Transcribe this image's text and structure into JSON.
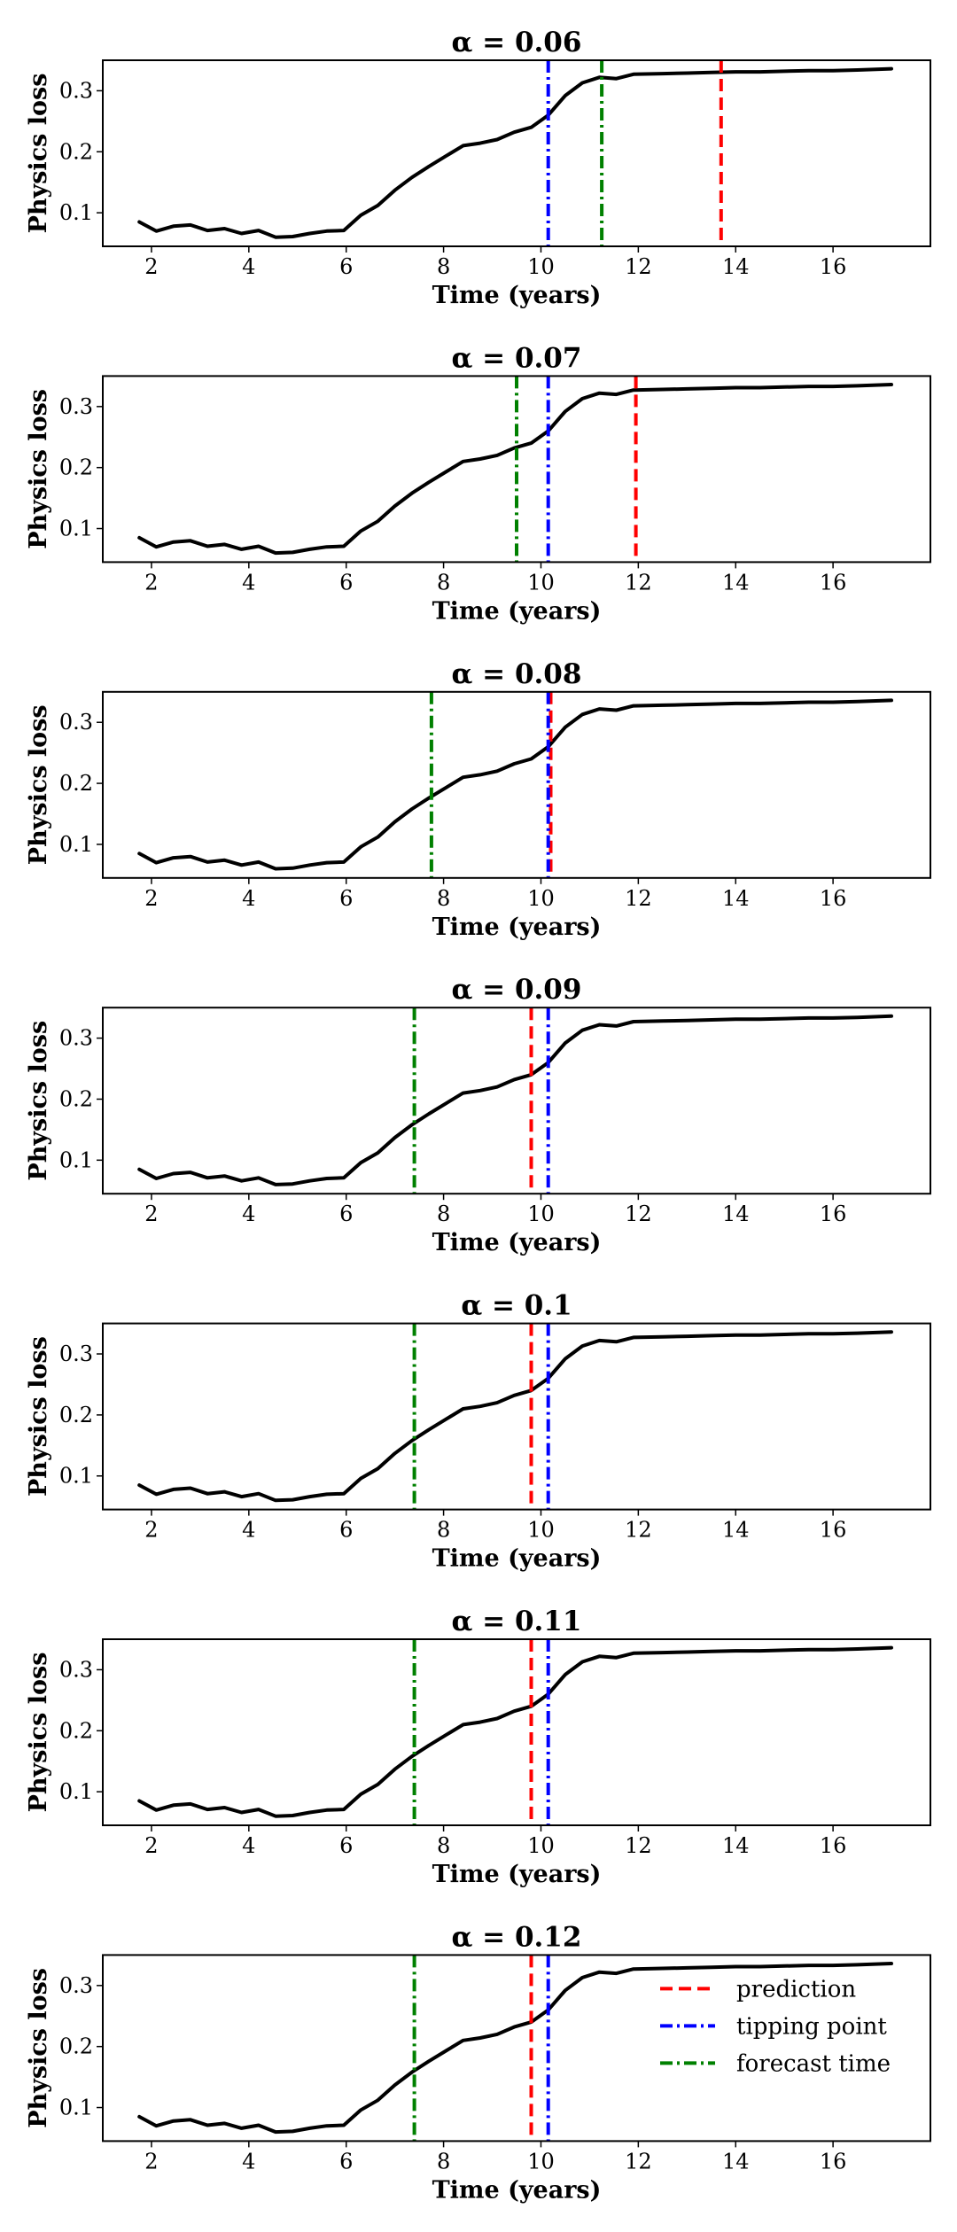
{
  "chart_data": [
    {
      "type": "line",
      "title": "α = 0.06",
      "xlabel": "Time (years)",
      "ylabel": "Physics loss",
      "xlim": [
        1.0,
        18.0
      ],
      "ylim": [
        0.045,
        0.35
      ],
      "xticks": [
        2,
        4,
        6,
        8,
        10,
        12,
        14,
        16
      ],
      "yticks": [
        0.1,
        0.2,
        0.3
      ],
      "grid": false,
      "loss_curve": {
        "x": [
          1.75,
          2.1,
          2.45,
          2.8,
          3.15,
          3.5,
          3.85,
          4.2,
          4.55,
          4.9,
          5.25,
          5.6,
          5.95,
          6.3,
          6.65,
          7.0,
          7.35,
          7.7,
          8.05,
          8.4,
          8.75,
          9.1,
          9.45,
          9.8,
          10.15,
          10.5,
          10.85,
          11.2,
          11.55,
          11.9,
          12.5,
          13.0,
          13.5,
          14.0,
          14.5,
          15.0,
          15.5,
          16.0,
          16.5,
          17.2
        ],
        "y": [
          0.085,
          0.07,
          0.078,
          0.08,
          0.071,
          0.074,
          0.066,
          0.071,
          0.06,
          0.061,
          0.066,
          0.07,
          0.071,
          0.096,
          0.112,
          0.137,
          0.158,
          0.176,
          0.193,
          0.21,
          0.214,
          0.22,
          0.232,
          0.24,
          0.26,
          0.292,
          0.313,
          0.322,
          0.32,
          0.327,
          0.328,
          0.329,
          0.33,
          0.331,
          0.331,
          0.332,
          0.333,
          0.333,
          0.334,
          0.336
        ],
        "color": "#000000"
      },
      "vlines": [
        {
          "name": "tipping point",
          "x": 10.15,
          "color": "#0000ff",
          "style": "dashdot"
        },
        {
          "name": "forecast time",
          "x": 11.25,
          "color": "#008000",
          "style": "dashdot"
        },
        {
          "name": "prediction",
          "x": 13.7,
          "color": "#ff0000",
          "style": "dashed"
        }
      ]
    },
    {
      "type": "line",
      "title": "α = 0.07",
      "xlabel": "Time (years)",
      "ylabel": "Physics loss",
      "xlim": [
        1.0,
        18.0
      ],
      "ylim": [
        0.045,
        0.35
      ],
      "xticks": [
        2,
        4,
        6,
        8,
        10,
        12,
        14,
        16
      ],
      "yticks": [
        0.1,
        0.2,
        0.3
      ],
      "grid": false,
      "loss_curve": {
        "x": [
          1.75,
          2.1,
          2.45,
          2.8,
          3.15,
          3.5,
          3.85,
          4.2,
          4.55,
          4.9,
          5.25,
          5.6,
          5.95,
          6.3,
          6.65,
          7.0,
          7.35,
          7.7,
          8.05,
          8.4,
          8.75,
          9.1,
          9.45,
          9.8,
          10.15,
          10.5,
          10.85,
          11.2,
          11.55,
          11.9,
          12.5,
          13.0,
          13.5,
          14.0,
          14.5,
          15.0,
          15.5,
          16.0,
          16.5,
          17.2
        ],
        "y": [
          0.085,
          0.07,
          0.078,
          0.08,
          0.071,
          0.074,
          0.066,
          0.071,
          0.06,
          0.061,
          0.066,
          0.07,
          0.071,
          0.096,
          0.112,
          0.137,
          0.158,
          0.176,
          0.193,
          0.21,
          0.214,
          0.22,
          0.232,
          0.24,
          0.26,
          0.292,
          0.313,
          0.322,
          0.32,
          0.327,
          0.328,
          0.329,
          0.33,
          0.331,
          0.331,
          0.332,
          0.333,
          0.333,
          0.334,
          0.336
        ],
        "color": "#000000"
      },
      "vlines": [
        {
          "name": "forecast time",
          "x": 9.5,
          "color": "#008000",
          "style": "dashdot"
        },
        {
          "name": "tipping point",
          "x": 10.15,
          "color": "#0000ff",
          "style": "dashdot"
        },
        {
          "name": "prediction",
          "x": 11.95,
          "color": "#ff0000",
          "style": "dashed"
        }
      ]
    },
    {
      "type": "line",
      "title": "α = 0.08",
      "xlabel": "Time (years)",
      "ylabel": "Physics loss",
      "xlim": [
        1.0,
        18.0
      ],
      "ylim": [
        0.045,
        0.35
      ],
      "xticks": [
        2,
        4,
        6,
        8,
        10,
        12,
        14,
        16
      ],
      "yticks": [
        0.1,
        0.2,
        0.3
      ],
      "grid": false,
      "loss_curve": {
        "x": [
          1.75,
          2.1,
          2.45,
          2.8,
          3.15,
          3.5,
          3.85,
          4.2,
          4.55,
          4.9,
          5.25,
          5.6,
          5.95,
          6.3,
          6.65,
          7.0,
          7.35,
          7.7,
          8.05,
          8.4,
          8.75,
          9.1,
          9.45,
          9.8,
          10.15,
          10.5,
          10.85,
          11.2,
          11.55,
          11.9,
          12.5,
          13.0,
          13.5,
          14.0,
          14.5,
          15.0,
          15.5,
          16.0,
          16.5,
          17.2
        ],
        "y": [
          0.085,
          0.07,
          0.078,
          0.08,
          0.071,
          0.074,
          0.066,
          0.071,
          0.06,
          0.061,
          0.066,
          0.07,
          0.071,
          0.096,
          0.112,
          0.137,
          0.158,
          0.176,
          0.193,
          0.21,
          0.214,
          0.22,
          0.232,
          0.24,
          0.26,
          0.292,
          0.313,
          0.322,
          0.32,
          0.327,
          0.328,
          0.329,
          0.33,
          0.331,
          0.331,
          0.332,
          0.333,
          0.333,
          0.334,
          0.336
        ],
        "color": "#000000"
      },
      "vlines": [
        {
          "name": "forecast time",
          "x": 7.75,
          "color": "#008000",
          "style": "dashdot"
        },
        {
          "name": "prediction",
          "x": 10.2,
          "color": "#ff0000",
          "style": "dashed"
        },
        {
          "name": "tipping point",
          "x": 10.15,
          "color": "#0000ff",
          "style": "dashdot"
        }
      ]
    },
    {
      "type": "line",
      "title": "α = 0.09",
      "xlabel": "Time (years)",
      "ylabel": "Physics loss",
      "xlim": [
        1.0,
        18.0
      ],
      "ylim": [
        0.045,
        0.35
      ],
      "xticks": [
        2,
        4,
        6,
        8,
        10,
        12,
        14,
        16
      ],
      "yticks": [
        0.1,
        0.2,
        0.3
      ],
      "grid": false,
      "loss_curve": {
        "x": [
          1.75,
          2.1,
          2.45,
          2.8,
          3.15,
          3.5,
          3.85,
          4.2,
          4.55,
          4.9,
          5.25,
          5.6,
          5.95,
          6.3,
          6.65,
          7.0,
          7.35,
          7.7,
          8.05,
          8.4,
          8.75,
          9.1,
          9.45,
          9.8,
          10.15,
          10.5,
          10.85,
          11.2,
          11.55,
          11.9,
          12.5,
          13.0,
          13.5,
          14.0,
          14.5,
          15.0,
          15.5,
          16.0,
          16.5,
          17.2
        ],
        "y": [
          0.085,
          0.07,
          0.078,
          0.08,
          0.071,
          0.074,
          0.066,
          0.071,
          0.06,
          0.061,
          0.066,
          0.07,
          0.071,
          0.096,
          0.112,
          0.137,
          0.158,
          0.176,
          0.193,
          0.21,
          0.214,
          0.22,
          0.232,
          0.24,
          0.26,
          0.292,
          0.313,
          0.322,
          0.32,
          0.327,
          0.328,
          0.329,
          0.33,
          0.331,
          0.331,
          0.332,
          0.333,
          0.333,
          0.334,
          0.336
        ],
        "color": "#000000"
      },
      "vlines": [
        {
          "name": "forecast time",
          "x": 7.4,
          "color": "#008000",
          "style": "dashdot"
        },
        {
          "name": "prediction",
          "x": 9.8,
          "color": "#ff0000",
          "style": "dashed"
        },
        {
          "name": "tipping point",
          "x": 10.15,
          "color": "#0000ff",
          "style": "dashdot"
        }
      ]
    },
    {
      "type": "line",
      "title": "α = 0.1",
      "xlabel": "Time (years)",
      "ylabel": "Physics loss",
      "xlim": [
        1.0,
        18.0
      ],
      "ylim": [
        0.045,
        0.35
      ],
      "xticks": [
        2,
        4,
        6,
        8,
        10,
        12,
        14,
        16
      ],
      "yticks": [
        0.1,
        0.2,
        0.3
      ],
      "grid": false,
      "loss_curve": {
        "x": [
          1.75,
          2.1,
          2.45,
          2.8,
          3.15,
          3.5,
          3.85,
          4.2,
          4.55,
          4.9,
          5.25,
          5.6,
          5.95,
          6.3,
          6.65,
          7.0,
          7.35,
          7.7,
          8.05,
          8.4,
          8.75,
          9.1,
          9.45,
          9.8,
          10.15,
          10.5,
          10.85,
          11.2,
          11.55,
          11.9,
          12.5,
          13.0,
          13.5,
          14.0,
          14.5,
          15.0,
          15.5,
          16.0,
          16.5,
          17.2
        ],
        "y": [
          0.085,
          0.07,
          0.078,
          0.08,
          0.071,
          0.074,
          0.066,
          0.071,
          0.06,
          0.061,
          0.066,
          0.07,
          0.071,
          0.096,
          0.112,
          0.137,
          0.158,
          0.176,
          0.193,
          0.21,
          0.214,
          0.22,
          0.232,
          0.24,
          0.26,
          0.292,
          0.313,
          0.322,
          0.32,
          0.327,
          0.328,
          0.329,
          0.33,
          0.331,
          0.331,
          0.332,
          0.333,
          0.333,
          0.334,
          0.336
        ],
        "color": "#000000"
      },
      "vlines": [
        {
          "name": "forecast time",
          "x": 7.4,
          "color": "#008000",
          "style": "dashdot"
        },
        {
          "name": "prediction",
          "x": 9.8,
          "color": "#ff0000",
          "style": "dashed"
        },
        {
          "name": "tipping point",
          "x": 10.15,
          "color": "#0000ff",
          "style": "dashdot"
        }
      ]
    },
    {
      "type": "line",
      "title": "α = 0.11",
      "xlabel": "Time (years)",
      "ylabel": "Physics loss",
      "xlim": [
        1.0,
        18.0
      ],
      "ylim": [
        0.045,
        0.35
      ],
      "xticks": [
        2,
        4,
        6,
        8,
        10,
        12,
        14,
        16
      ],
      "yticks": [
        0.1,
        0.2,
        0.3
      ],
      "grid": false,
      "loss_curve": {
        "x": [
          1.75,
          2.1,
          2.45,
          2.8,
          3.15,
          3.5,
          3.85,
          4.2,
          4.55,
          4.9,
          5.25,
          5.6,
          5.95,
          6.3,
          6.65,
          7.0,
          7.35,
          7.7,
          8.05,
          8.4,
          8.75,
          9.1,
          9.45,
          9.8,
          10.15,
          10.5,
          10.85,
          11.2,
          11.55,
          11.9,
          12.5,
          13.0,
          13.5,
          14.0,
          14.5,
          15.0,
          15.5,
          16.0,
          16.5,
          17.2
        ],
        "y": [
          0.085,
          0.07,
          0.078,
          0.08,
          0.071,
          0.074,
          0.066,
          0.071,
          0.06,
          0.061,
          0.066,
          0.07,
          0.071,
          0.096,
          0.112,
          0.137,
          0.158,
          0.176,
          0.193,
          0.21,
          0.214,
          0.22,
          0.232,
          0.24,
          0.26,
          0.292,
          0.313,
          0.322,
          0.32,
          0.327,
          0.328,
          0.329,
          0.33,
          0.331,
          0.331,
          0.332,
          0.333,
          0.333,
          0.334,
          0.336
        ],
        "color": "#000000"
      },
      "vlines": [
        {
          "name": "forecast time",
          "x": 7.4,
          "color": "#008000",
          "style": "dashdot"
        },
        {
          "name": "prediction",
          "x": 9.8,
          "color": "#ff0000",
          "style": "dashed"
        },
        {
          "name": "tipping point",
          "x": 10.15,
          "color": "#0000ff",
          "style": "dashdot"
        }
      ]
    },
    {
      "type": "line",
      "title": "α = 0.12",
      "xlabel": "Time (years)",
      "ylabel": "Physics loss",
      "xlim": [
        1.0,
        18.0
      ],
      "ylim": [
        0.045,
        0.35
      ],
      "xticks": [
        2,
        4,
        6,
        8,
        10,
        12,
        14,
        16
      ],
      "yticks": [
        0.1,
        0.2,
        0.3
      ],
      "grid": false,
      "legend": {
        "placement": "top-right",
        "entries": [
          {
            "label": "prediction",
            "color": "#ff0000",
            "style": "dashed"
          },
          {
            "label": "tipping point",
            "color": "#0000ff",
            "style": "dashdot"
          },
          {
            "label": "forecast time",
            "color": "#008000",
            "style": "dashdot"
          }
        ]
      },
      "loss_curve": {
        "x": [
          1.75,
          2.1,
          2.45,
          2.8,
          3.15,
          3.5,
          3.85,
          4.2,
          4.55,
          4.9,
          5.25,
          5.6,
          5.95,
          6.3,
          6.65,
          7.0,
          7.35,
          7.7,
          8.05,
          8.4,
          8.75,
          9.1,
          9.45,
          9.8,
          10.15,
          10.5,
          10.85,
          11.2,
          11.55,
          11.9,
          12.5,
          13.0,
          13.5,
          14.0,
          14.5,
          15.0,
          15.5,
          16.0,
          16.5,
          17.2
        ],
        "y": [
          0.085,
          0.07,
          0.078,
          0.08,
          0.071,
          0.074,
          0.066,
          0.071,
          0.06,
          0.061,
          0.066,
          0.07,
          0.071,
          0.096,
          0.112,
          0.137,
          0.158,
          0.176,
          0.193,
          0.21,
          0.214,
          0.22,
          0.232,
          0.24,
          0.26,
          0.292,
          0.313,
          0.322,
          0.32,
          0.327,
          0.328,
          0.329,
          0.33,
          0.331,
          0.331,
          0.332,
          0.333,
          0.333,
          0.334,
          0.336
        ],
        "color": "#000000"
      },
      "vlines": [
        {
          "name": "forecast time",
          "x": 7.4,
          "color": "#008000",
          "style": "dashdot"
        },
        {
          "name": "prediction",
          "x": 9.8,
          "color": "#ff0000",
          "style": "dashed"
        },
        {
          "name": "tipping point",
          "x": 10.15,
          "color": "#0000ff",
          "style": "dashdot"
        }
      ]
    }
  ]
}
